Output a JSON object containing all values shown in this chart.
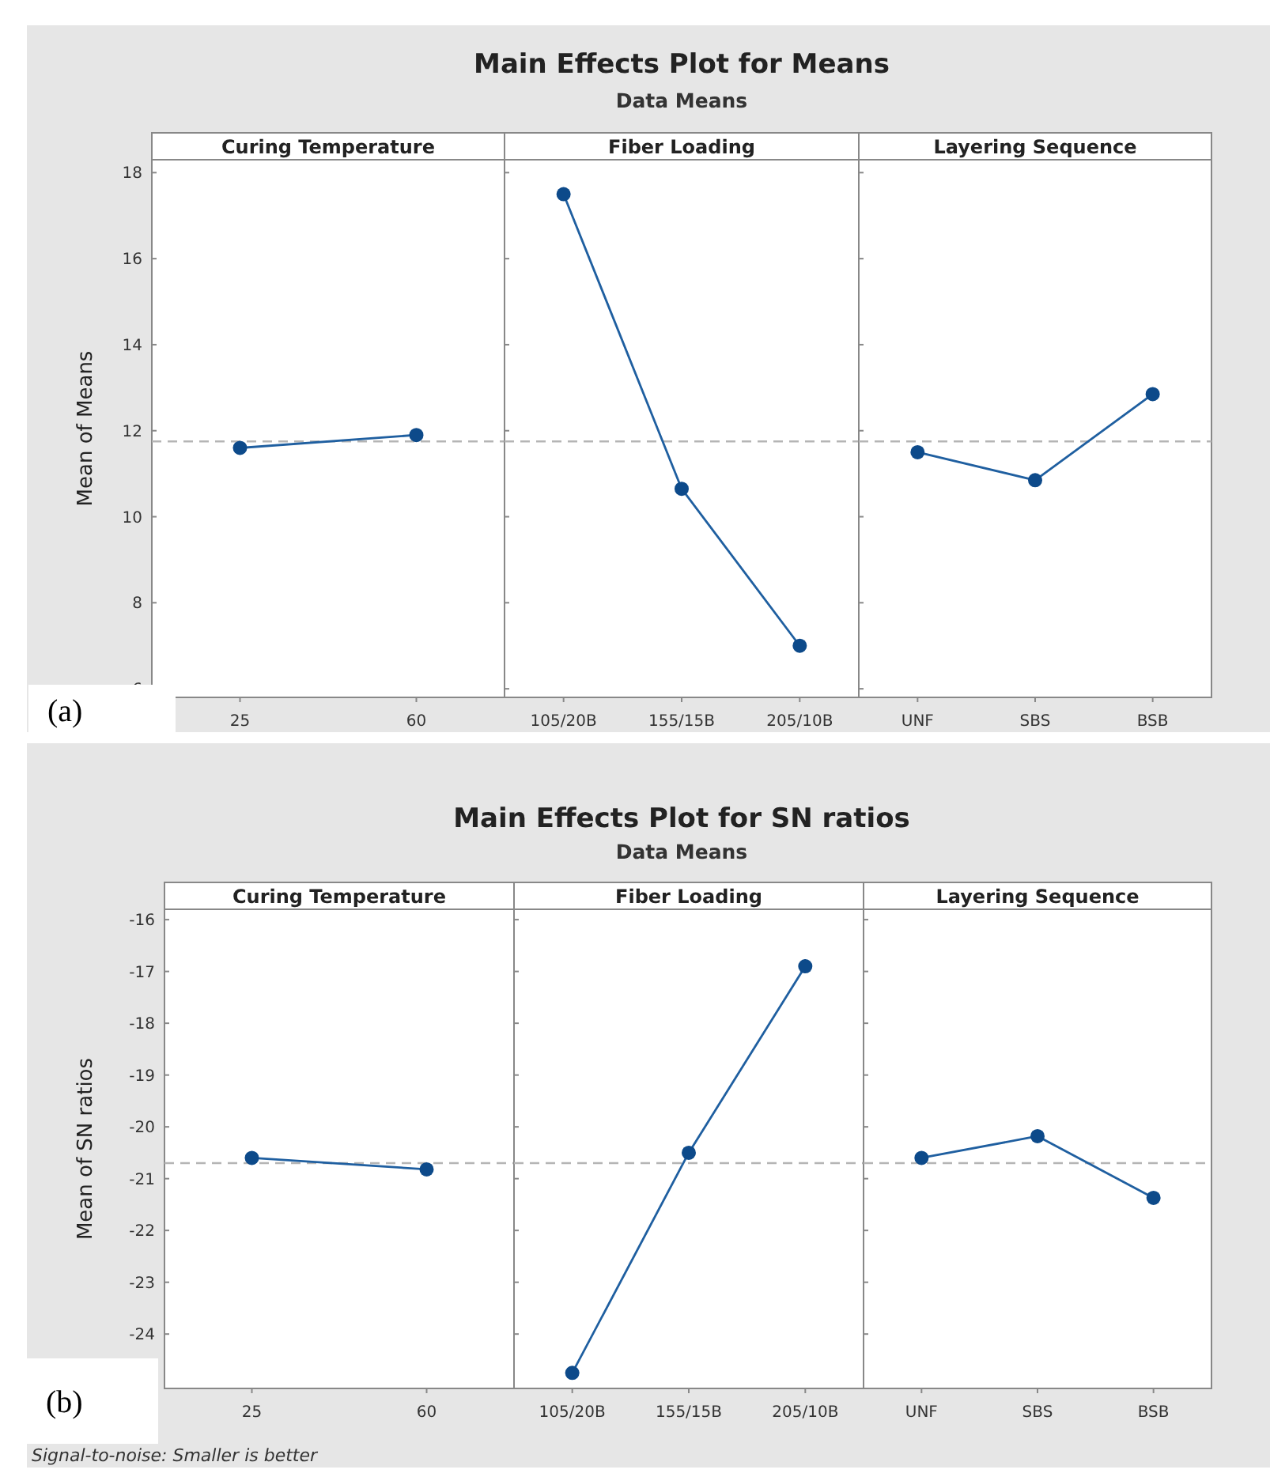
{
  "chart_data": [
    {
      "type": "line",
      "title": "Curing Temperature",
      "ylabel": "Mean of Means",
      "categories": [
        "25",
        "60"
      ],
      "series": [
        {
          "color": "#1f5fa0",
          "values": [
            11.6,
            11.9
          ]
        }
      ],
      "ylim": [
        5.8,
        18.3
      ],
      "yticks": [
        6,
        8,
        10,
        12,
        14,
        16,
        18
      ],
      "ref_lines": [
        {
          "axis": "y",
          "value": 11.75,
          "color": "#b5b5b5",
          "line_style": "dashed"
        }
      ],
      "marker": "circle",
      "line_style": "solid",
      "grid": false,
      "annotations": [
        "Main Effects Plot for Means",
        "Data Means",
        "(a)"
      ]
    },
    {
      "type": "line",
      "title": "Fiber Loading",
      "categories": [
        "105/20B",
        "155/15B",
        "205/10B"
      ],
      "series": [
        {
          "color": "#1f5fa0",
          "values": [
            17.5,
            10.65,
            7.0
          ]
        }
      ],
      "ylim": [
        5.8,
        18.3
      ],
      "yticks": [
        6,
        8,
        10,
        12,
        14,
        16,
        18
      ],
      "ref_lines": [
        {
          "axis": "y",
          "value": 11.75,
          "color": "#b5b5b5",
          "line_style": "dashed"
        }
      ],
      "marker": "circle",
      "line_style": "solid",
      "grid": false,
      "tick_labels": "x"
    },
    {
      "type": "line",
      "title": "Layering Sequence",
      "categories": [
        "UNF",
        "SBS",
        "BSB"
      ],
      "series": [
        {
          "color": "#1f5fa0",
          "values": [
            11.5,
            10.85,
            12.85
          ]
        }
      ],
      "ylim": [
        5.8,
        18.3
      ],
      "yticks": [
        6,
        8,
        10,
        12,
        14,
        16,
        18
      ],
      "ref_lines": [
        {
          "axis": "y",
          "value": 11.75,
          "color": "#b5b5b5",
          "line_style": "dashed"
        }
      ],
      "marker": "circle",
      "line_style": "solid",
      "grid": false,
      "tick_labels": "x"
    },
    {
      "type": "line",
      "title": "Curing Temperature",
      "ylabel": "Mean of SN ratios",
      "categories": [
        "25",
        "60"
      ],
      "series": [
        {
          "color": "#1f5fa0",
          "values": [
            -20.6,
            -20.82
          ]
        }
      ],
      "ylim": [
        -25.05,
        -15.8
      ],
      "yticks": [
        -24,
        -23,
        -22,
        -21,
        -20,
        -19,
        -18,
        -17,
        -16
      ],
      "ref_lines": [
        {
          "axis": "y",
          "value": -20.7,
          "color": "#b5b5b5",
          "line_style": "dashed"
        }
      ],
      "marker": "circle",
      "line_style": "solid",
      "grid": false,
      "annotations": [
        "Main Effects Plot for SN ratios",
        "Data Means",
        "(b)",
        "Signal-to-noise: Smaller is better"
      ]
    },
    {
      "type": "line",
      "title": "Fiber Loading",
      "categories": [
        "105/20B",
        "155/15B",
        "205/10B"
      ],
      "series": [
        {
          "color": "#1f5fa0",
          "values": [
            -24.75,
            -20.5,
            -16.9
          ]
        }
      ],
      "ylim": [
        -25.05,
        -15.8
      ],
      "yticks": [
        -24,
        -23,
        -22,
        -21,
        -20,
        -19,
        -18,
        -17,
        -16
      ],
      "ref_lines": [
        {
          "axis": "y",
          "value": -20.7,
          "color": "#b5b5b5",
          "line_style": "dashed"
        }
      ],
      "marker": "circle",
      "line_style": "solid",
      "grid": false,
      "tick_labels": "x"
    },
    {
      "type": "line",
      "title": "Layering Sequence",
      "categories": [
        "UNF",
        "SBS",
        "BSB"
      ],
      "series": [
        {
          "color": "#1f5fa0",
          "values": [
            -20.6,
            -20.18,
            -21.37
          ]
        }
      ],
      "ylim": [
        -25.05,
        -15.8
      ],
      "yticks": [
        -24,
        -23,
        -22,
        -21,
        -20,
        -19,
        -18,
        -17,
        -16
      ],
      "ref_lines": [
        {
          "axis": "y",
          "value": -20.7,
          "color": "#b5b5b5",
          "line_style": "dashed"
        }
      ],
      "marker": "circle",
      "line_style": "solid",
      "grid": false,
      "tick_labels": "x"
    }
  ]
}
